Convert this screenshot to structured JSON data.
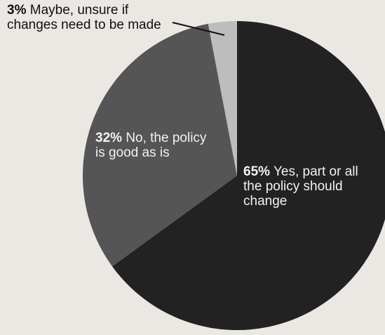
{
  "chart_data": {
    "type": "pie",
    "slices": [
      {
        "value": 65,
        "pct_text": "65%",
        "text": "Yes, part or all the policy should change",
        "color": "#222222"
      },
      {
        "value": 32,
        "pct_text": "32%",
        "text": "No, the policy is good as is",
        "color": "#555555"
      },
      {
        "value": 3,
        "pct_text": "3%",
        "text": "Maybe, unsure if changes need to be made",
        "color": "#bdbdbd"
      }
    ]
  }
}
